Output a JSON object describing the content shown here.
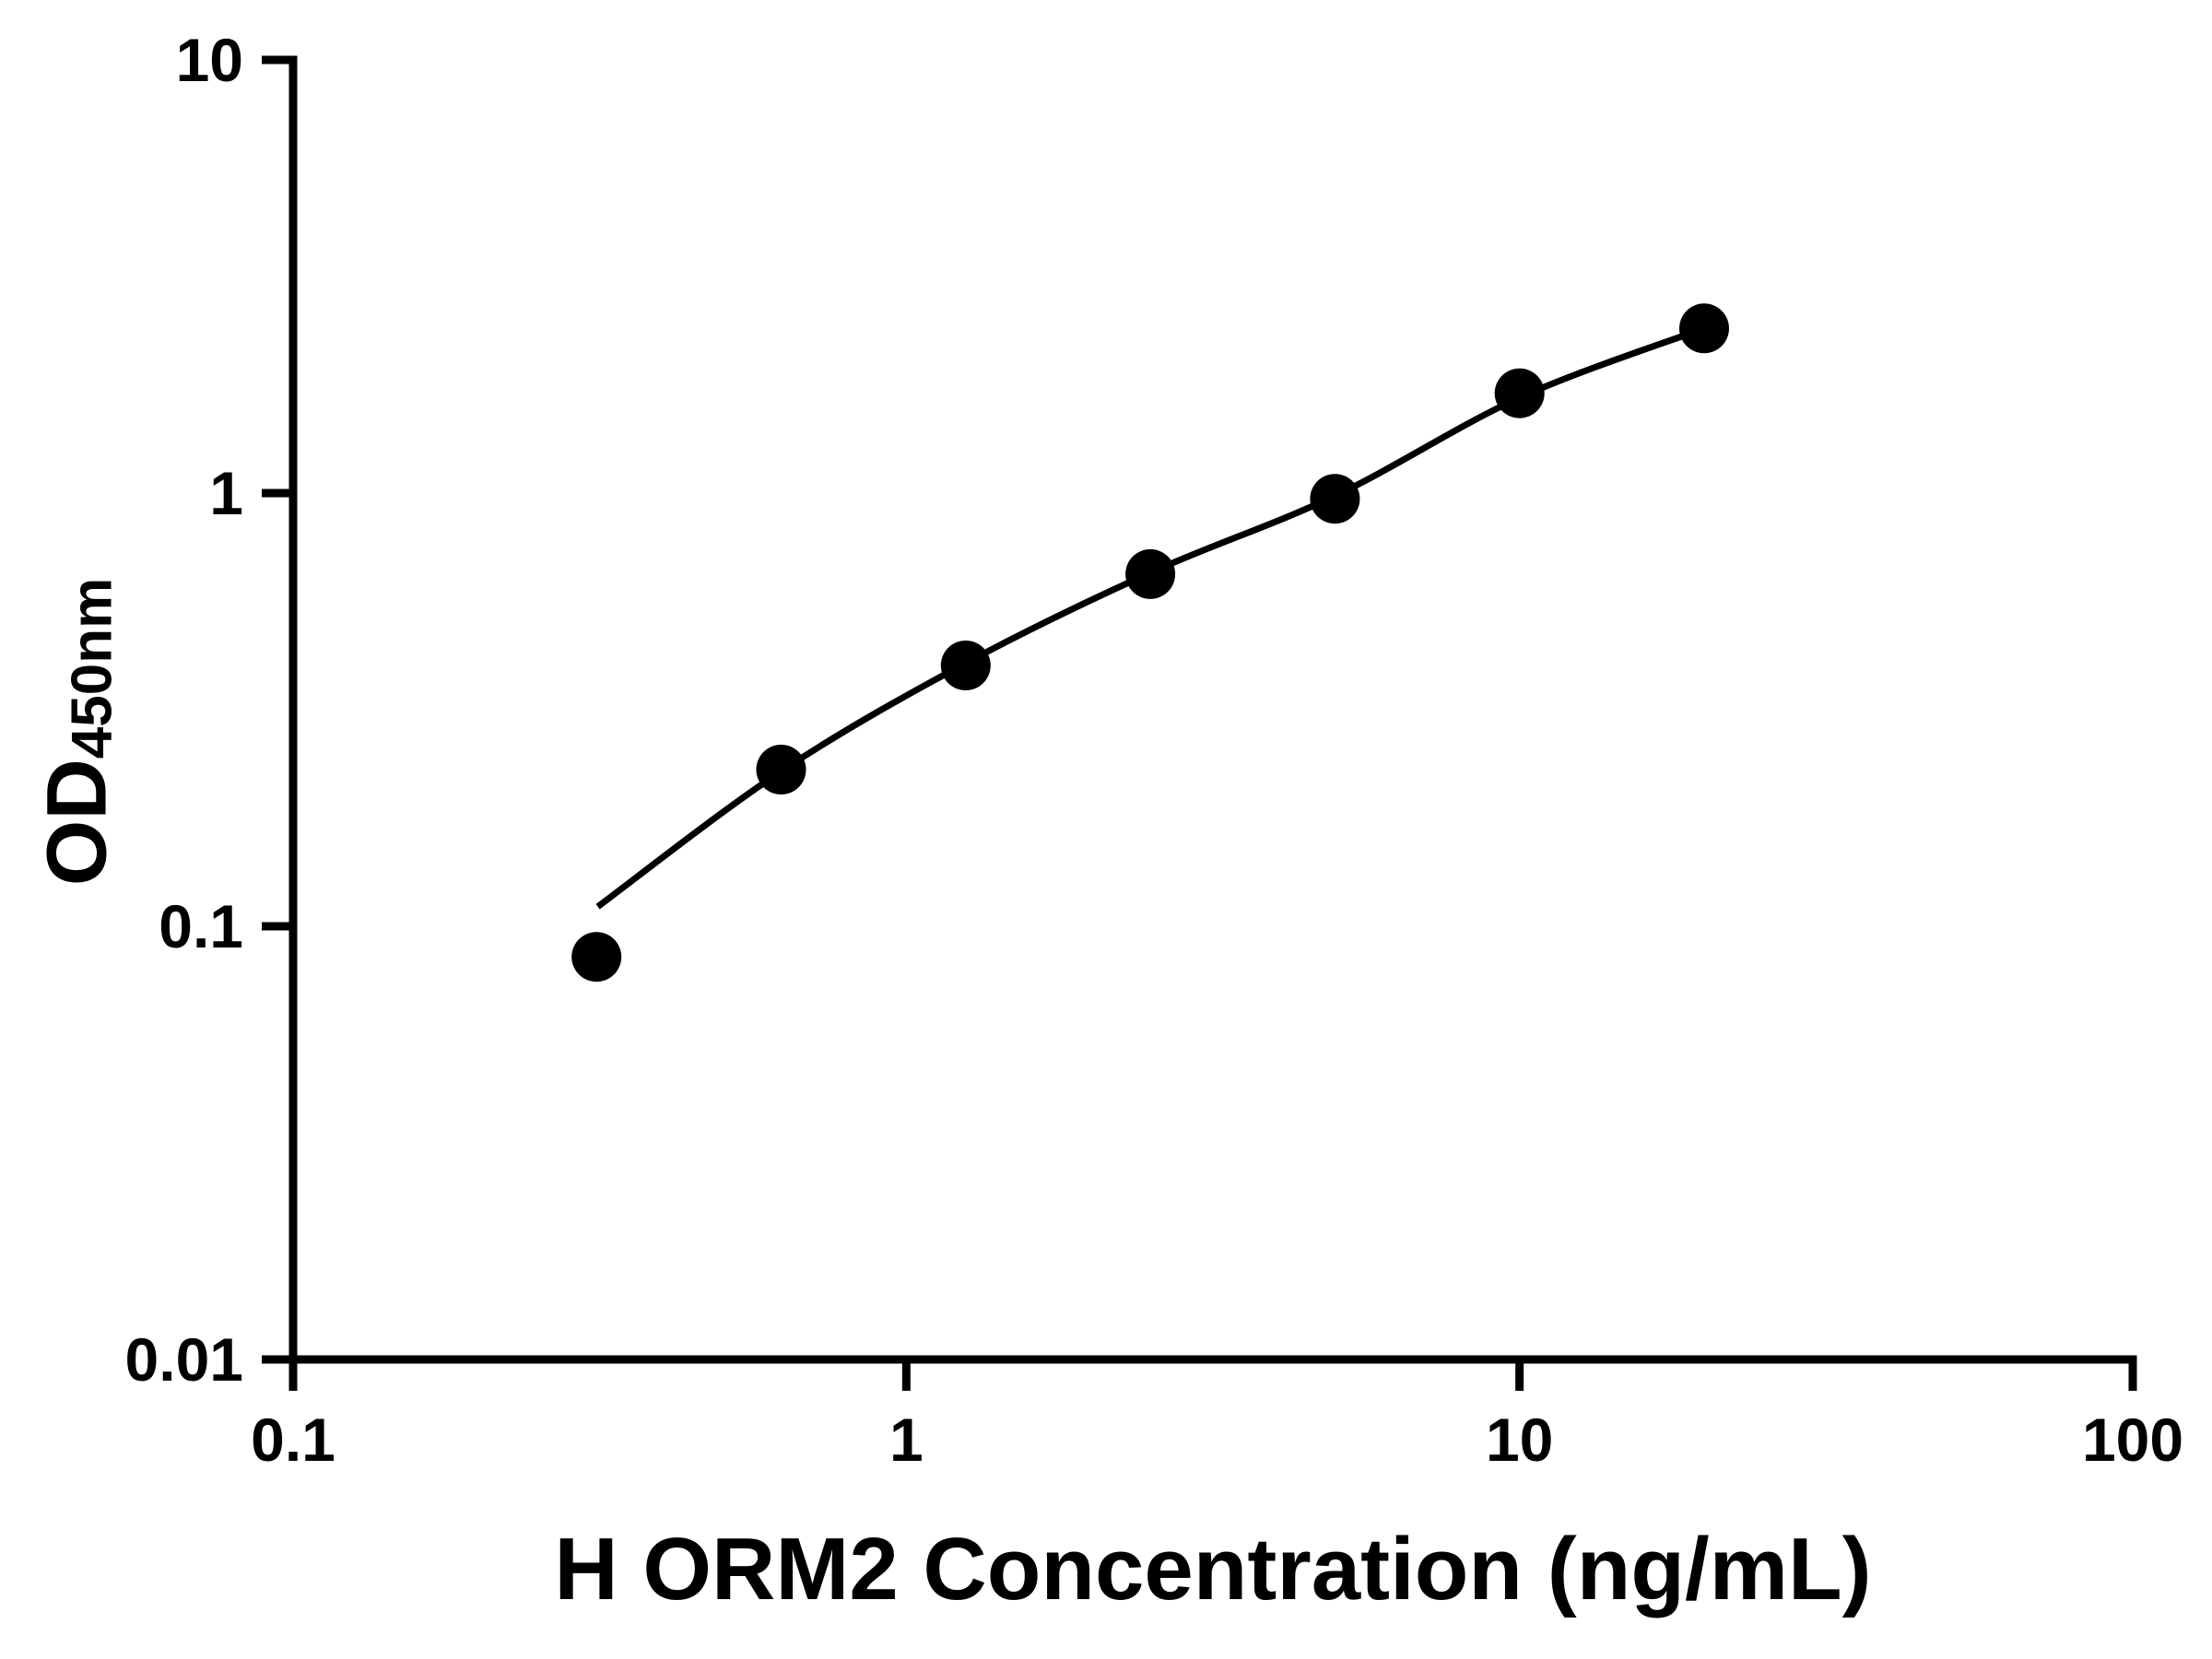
{
  "chart_data": {
    "type": "scatter",
    "xlabel": "H ORM2 Concentration (ng/mL)",
    "ylabel_main": "OD",
    "ylabel_sub": "450nm",
    "x_scale": "log",
    "y_scale": "log",
    "xlim": [
      0.1,
      100
    ],
    "ylim": [
      0.01,
      10
    ],
    "x_ticks": [
      0.1,
      1,
      10,
      100
    ],
    "x_tick_labels": [
      "0.1",
      "1",
      "10",
      "100"
    ],
    "y_ticks": [
      0.01,
      0.1,
      1,
      10
    ],
    "y_tick_labels": [
      "0.01",
      "0.1",
      "1",
      "10"
    ],
    "grid": false,
    "legend": "none",
    "colors": {
      "axis": "#000000",
      "marker": "#000000",
      "curve": "#000000",
      "background": "#ffffff"
    },
    "series": [
      {
        "marker": "circle",
        "color": "#000000",
        "points": [
          {
            "x": 0.3125,
            "y": 0.085
          },
          {
            "x": 0.625,
            "y": 0.23
          },
          {
            "x": 1.25,
            "y": 0.4
          },
          {
            "x": 2.5,
            "y": 0.65
          },
          {
            "x": 5,
            "y": 0.97
          },
          {
            "x": 10,
            "y": 1.7
          },
          {
            "x": 20,
            "y": 2.4
          }
        ]
      }
    ],
    "fit_curve": {
      "color": "#000000",
      "points": [
        {
          "x": 0.314,
          "y": 0.111
        },
        {
          "x": 0.625,
          "y": 0.228
        },
        {
          "x": 1.25,
          "y": 0.405
        },
        {
          "x": 2.5,
          "y": 0.655
        },
        {
          "x": 5,
          "y": 0.985
        },
        {
          "x": 10,
          "y": 1.66
        },
        {
          "x": 20,
          "y": 2.4
        }
      ]
    }
  }
}
